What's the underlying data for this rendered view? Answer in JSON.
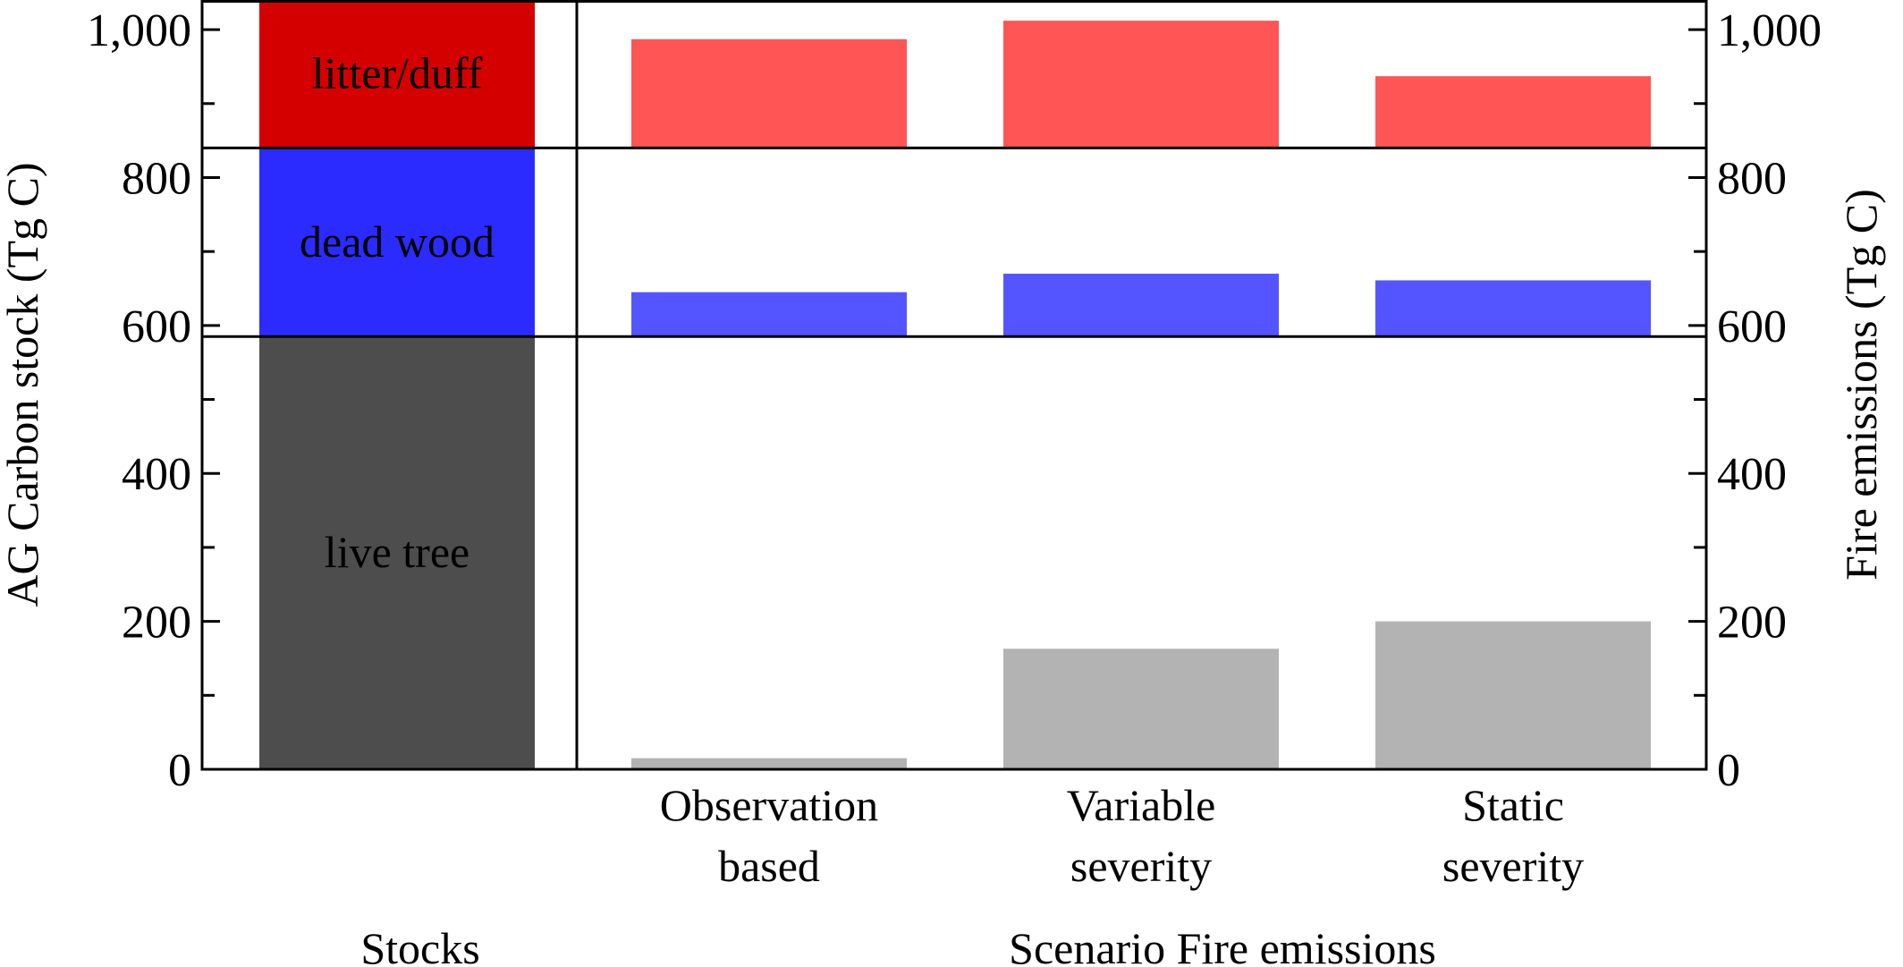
{
  "chart_data": {
    "type": "bar",
    "ylabel_left": "AG Carbon stock (Tg C)",
    "ylabel_right": "Fire emissions (Tg C)",
    "ylim": [
      0,
      1040
    ],
    "yticks": [
      0,
      200,
      400,
      600,
      800,
      1000
    ],
    "ytick_labels": [
      "0",
      "200",
      "400",
      "600",
      "800",
      "1,000"
    ],
    "minor_yticks": [
      100,
      300,
      500,
      700,
      900
    ],
    "stocks": {
      "group_label": "Stocks",
      "segments": [
        {
          "name": "live tree",
          "from": 0,
          "to": 585,
          "color": "#4d4d4d"
        },
        {
          "name": "dead wood",
          "from": 585,
          "to": 840,
          "color": "#2b2bff"
        },
        {
          "name": "litter/duff",
          "from": 840,
          "to": 1040,
          "color": "#d40000"
        }
      ]
    },
    "emissions": {
      "group_label": "Scenario Fire emissions",
      "categories": [
        {
          "line1": "Observation",
          "line2": "based"
        },
        {
          "line1": "Variable",
          "line2": "severity"
        },
        {
          "line1": "Static",
          "line2": "severity"
        }
      ],
      "series": [
        {
          "pool": "live tree",
          "values": [
            15,
            163,
            200
          ],
          "color": "#b3b3b3"
        },
        {
          "pool": "dead wood",
          "values": [
            645,
            670,
            661
          ],
          "color": "#5555ff"
        },
        {
          "pool": "litter/duff",
          "values": [
            987,
            1012,
            937
          ],
          "color": "#ff5555"
        }
      ]
    }
  }
}
